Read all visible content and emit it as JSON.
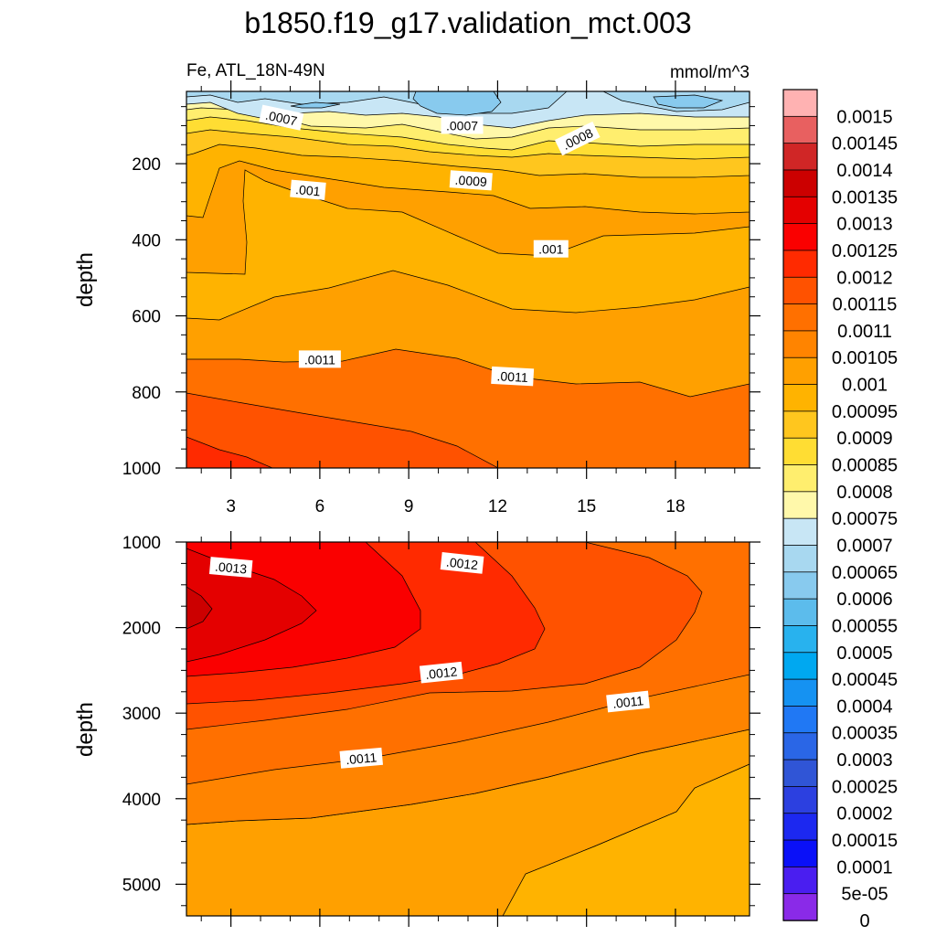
{
  "figure": {
    "title": "b1850.f19_g17.validation_mct.003",
    "left_label": "Fe, ATL_18N-49N",
    "right_label": "mmol/m^3"
  },
  "chart_data": [
    {
      "type": "heatmap",
      "panel": "upper",
      "title": "",
      "xlabel": "",
      "ylabel": "depth",
      "x_ticks": [
        3,
        6,
        9,
        12,
        15,
        18
      ],
      "y_ticks": [
        200,
        400,
        600,
        800,
        1000
      ],
      "xlim": [
        1.5,
        20.5
      ],
      "ylim": [
        1000,
        10
      ],
      "y_reversed": true,
      "contour_labels": [
        {
          "text": ".0007",
          "x": 4.7,
          "y": 80
        },
        {
          "text": ".0007",
          "x": 10.8,
          "y": 100
        },
        {
          "text": ".0008",
          "x": 14.7,
          "y": 135
        },
        {
          "text": ".001",
          "x": 5.6,
          "y": 270
        },
        {
          "text": ".0009",
          "x": 11.1,
          "y": 245
        },
        {
          "text": ".001",
          "x": 13.8,
          "y": 425
        },
        {
          "text": ".0011",
          "x": 6.0,
          "y": 715
        },
        {
          "text": ".0011",
          "x": 12.5,
          "y": 760
        }
      ]
    },
    {
      "type": "heatmap",
      "panel": "lower",
      "title": "",
      "xlabel": "",
      "ylabel": "depth",
      "x_ticks": [
        3,
        6,
        9,
        12,
        15,
        18
      ],
      "y_ticks": [
        1000,
        2000,
        3000,
        4000,
        5000
      ],
      "xlim": [
        1.5,
        20.5
      ],
      "ylim": [
        5370,
        1000
      ],
      "y_reversed": true,
      "contour_labels": [
        {
          "text": ".0013",
          "x": 3.0,
          "y": 1300
        },
        {
          "text": ".0012",
          "x": 10.8,
          "y": 1250
        },
        {
          "text": ".0012",
          "x": 10.1,
          "y": 2530
        },
        {
          "text": ".0011",
          "x": 7.4,
          "y": 3530
        },
        {
          "text": ".0011",
          "x": 16.4,
          "y": 2870
        }
      ]
    }
  ],
  "colorbar": {
    "labels": [
      "0.0015",
      "0.00145",
      "0.0014",
      "0.00135",
      "0.0013",
      "0.00125",
      "0.0012",
      "0.00115",
      "0.0011",
      "0.00105",
      "0.001",
      "0.00095",
      "0.0009",
      "0.00085",
      "0.0008",
      "0.00075",
      "0.0007",
      "0.00065",
      "0.0006",
      "0.00055",
      "0.0005",
      "0.00045",
      "0.0004",
      "0.00035",
      "0.0003",
      "0.00025",
      "0.0002",
      "0.00015",
      "0.0001",
      "5e-05",
      "0"
    ],
    "colors": [
      "#ffb2b2",
      "#e86060",
      "#d02626",
      "#cc0000",
      "#e40000",
      "#fa0000",
      "#ff2a00",
      "#ff5200",
      "#ff7000",
      "#ff8400",
      "#ffa000",
      "#ffb300",
      "#ffc61e",
      "#ffdd33",
      "#ffee6e",
      "#fff8aa",
      "#c8e6f5",
      "#a8d8f0",
      "#88caee",
      "#5cbcec",
      "#28b2ee",
      "#00a8f0",
      "#1592f2",
      "#2078f4",
      "#2a66e6",
      "#3055d6",
      "#2c40e0",
      "#1c28f0",
      "#0a10f8",
      "#4a1ef0",
      "#8a2ae8"
    ]
  },
  "colors": {
    "c_0006": "#88caee",
    "c_00065": "#a8d8f0",
    "c_0007": "#c8e6f5",
    "c_00075": "#fff8aa",
    "c_0008": "#ffee6e",
    "c_00085": "#ffdd33",
    "c_0009": "#ffc61e",
    "c_00095": "#ffb300",
    "c_001": "#ffa000",
    "c_00105": "#ff8400",
    "c_0011": "#ff7000",
    "c_00115": "#ff5200",
    "c_0012": "#ff2a00",
    "c_00125": "#fa0000",
    "c_0013": "#e40000",
    "c_00135": "#cc0000"
  }
}
